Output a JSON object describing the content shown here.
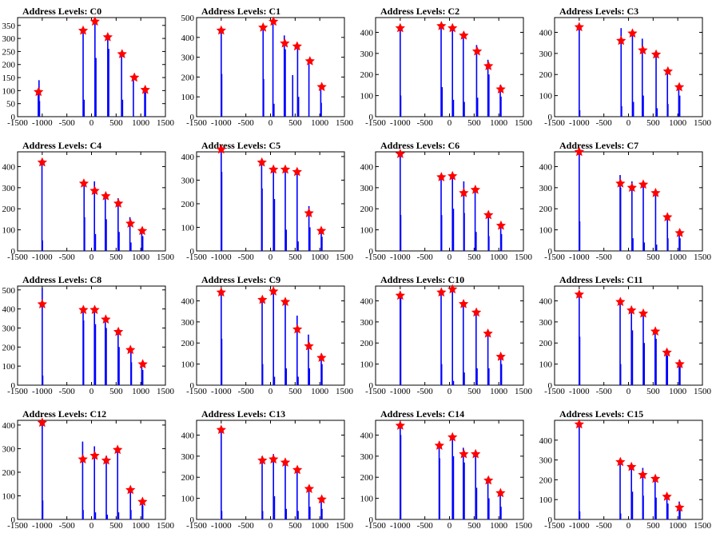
{
  "x_ticks": [
    -1500,
    -1000,
    -500,
    0,
    500,
    1000,
    1500
  ],
  "xlim": [
    -1500,
    1500
  ],
  "colors": {
    "bars": "#0000ff",
    "stars": "#ff0000",
    "axis": "#000000"
  },
  "chart_data": [
    {
      "type": "bar",
      "title": "Address Levels: C0",
      "ylim": [
        0,
        380
      ],
      "y_ticks": [
        0,
        50,
        100,
        150,
        200,
        250,
        300,
        350
      ],
      "bars": {
        "x": [
          -1080,
          -1065,
          -1055,
          -170,
          -150,
          70,
          90,
          330,
          350,
          610,
          630,
          850,
          1080,
          1095
        ],
        "y": [
          105,
          140,
          60,
          340,
          65,
          360,
          225,
          300,
          260,
          235,
          65,
          150,
          100,
          100
        ]
      },
      "stars": {
        "x": [
          -1075,
          -170,
          70,
          330,
          620,
          870,
          1090
        ],
        "y": [
          95,
          330,
          365,
          305,
          240,
          150,
          103
        ]
      }
    },
    {
      "type": "bar",
      "title": "Address Levels: C1",
      "ylim": [
        0,
        500
      ],
      "y_ticks": [
        0,
        100,
        200,
        300,
        400,
        500
      ],
      "bars": {
        "x": [
          -1000,
          -990,
          -150,
          -140,
          50,
          70,
          280,
          300,
          450,
          550,
          570,
          780,
          1020,
          1030
        ],
        "y": [
          430,
          215,
          450,
          190,
          480,
          65,
          410,
          340,
          210,
          360,
          100,
          280,
          150,
          70
        ]
      },
      "stars": {
        "x": [
          -1000,
          -150,
          60,
          290,
          540,
          800,
          1040
        ],
        "y": [
          435,
          450,
          480,
          370,
          355,
          280,
          150
        ]
      }
    },
    {
      "type": "bar",
      "title": "Address Levels: C2",
      "ylim": [
        0,
        470
      ],
      "y_ticks": [
        0,
        100,
        200,
        300,
        400
      ],
      "bars": {
        "x": [
          -1000,
          -990,
          -170,
          -150,
          60,
          80,
          280,
          300,
          550,
          570,
          780,
          800,
          1030,
          1045
        ],
        "y": [
          420,
          100,
          430,
          140,
          425,
          80,
          400,
          70,
          340,
          90,
          270,
          200,
          150,
          95
        ]
      },
      "stars": {
        "x": [
          -1000,
          -165,
          60,
          290,
          560,
          790,
          1040
        ],
        "y": [
          420,
          430,
          420,
          385,
          310,
          240,
          130
        ]
      }
    },
    {
      "type": "bar",
      "title": "Address Levels: C3",
      "ylim": [
        0,
        470
      ],
      "y_ticks": [
        0,
        100,
        200,
        300,
        400
      ],
      "bars": {
        "x": [
          -1000,
          -990,
          -150,
          -140,
          80,
          100,
          280,
          300,
          560,
          580,
          790,
          800,
          1020,
          1040
        ],
        "y": [
          420,
          30,
          420,
          50,
          400,
          70,
          370,
          100,
          300,
          40,
          220,
          60,
          150,
          100
        ]
      },
      "stars": {
        "x": [
          -1000,
          -150,
          80,
          290,
          560,
          800,
          1030
        ],
        "y": [
          425,
          360,
          395,
          315,
          295,
          215,
          140
        ]
      }
    },
    {
      "type": "bar",
      "title": "Address Levels: C4",
      "ylim": [
        0,
        470
      ],
      "y_ticks": [
        0,
        100,
        200,
        300,
        400
      ],
      "bars": {
        "x": [
          -1005,
          -995,
          -150,
          -140,
          60,
          80,
          280,
          300,
          540,
          560,
          780,
          800,
          1020,
          1040
        ],
        "y": [
          430,
          50,
          320,
          160,
          330,
          80,
          270,
          150,
          250,
          90,
          160,
          40,
          110,
          70
        ]
      },
      "stars": {
        "x": [
          -1000,
          -155,
          65,
          290,
          545,
          790,
          1030
        ],
        "y": [
          420,
          320,
          285,
          260,
          225,
          130,
          95
        ]
      }
    },
    {
      "type": "bar",
      "title": "Address Levels: C5",
      "ylim": [
        0,
        420
      ],
      "y_ticks": [
        0,
        100,
        200,
        300,
        400
      ],
      "bars": {
        "x": [
          -1000,
          -990,
          -180,
          -170,
          60,
          80,
          300,
          320,
          540,
          560,
          780,
          800,
          1030,
          1045
        ],
        "y": [
          430,
          335,
          380,
          265,
          350,
          220,
          340,
          90,
          340,
          40,
          190,
          100,
          100,
          60
        ]
      },
      "stars": {
        "x": [
          -1000,
          -175,
          60,
          300,
          540,
          780,
          1030
        ],
        "y": [
          430,
          375,
          345,
          345,
          335,
          160,
          85
        ]
      }
    },
    {
      "type": "bar",
      "title": "Address Levels: C6",
      "ylim": [
        0,
        470
      ],
      "y_ticks": [
        0,
        100,
        200,
        300,
        400
      ],
      "bars": {
        "x": [
          -1000,
          -990,
          -170,
          -160,
          60,
          80,
          290,
          300,
          520,
          540,
          790,
          800,
          1040,
          1055
        ],
        "y": [
          470,
          170,
          340,
          170,
          360,
          200,
          330,
          180,
          300,
          90,
          190,
          70,
          130,
          80
        ]
      },
      "stars": {
        "x": [
          -1000,
          -165,
          60,
          290,
          525,
          790,
          1045
        ],
        "y": [
          460,
          350,
          355,
          275,
          290,
          170,
          120
        ]
      }
    },
    {
      "type": "bar",
      "title": "Address Levels: C7",
      "ylim": [
        0,
        470
      ],
      "y_ticks": [
        0,
        100,
        200,
        300,
        400
      ],
      "bars": {
        "x": [
          -1000,
          -990,
          -170,
          -160,
          70,
          90,
          300,
          320,
          550,
          570,
          790,
          800,
          1030,
          1045
        ],
        "y": [
          470,
          140,
          360,
          300,
          330,
          60,
          320,
          40,
          280,
          30,
          170,
          60,
          100,
          60
        ]
      },
      "stars": {
        "x": [
          -1000,
          -165,
          70,
          300,
          550,
          790,
          1040
        ],
        "y": [
          470,
          320,
          300,
          315,
          275,
          160,
          85
        ]
      }
    },
    {
      "type": "bar",
      "title": "Address Levels: C8",
      "ylim": [
        0,
        520
      ],
      "y_ticks": [
        0,
        100,
        200,
        300,
        400,
        500
      ],
      "bars": {
        "x": [
          -1000,
          -990,
          -170,
          -160,
          60,
          80,
          280,
          300,
          540,
          560,
          800,
          810,
          1020,
          1040
        ],
        "y": [
          510,
          50,
          400,
          340,
          400,
          320,
          350,
          300,
          290,
          200,
          190,
          120,
          110,
          80
        ]
      },
      "stars": {
        "x": [
          -1000,
          -165,
          65,
          290,
          545,
          790,
          1040
        ],
        "y": [
          425,
          395,
          395,
          345,
          280,
          185,
          110
        ]
      }
    },
    {
      "type": "bar",
      "title": "Address Levels: C9",
      "ylim": [
        0,
        470
      ],
      "y_ticks": [
        0,
        100,
        200,
        300,
        400
      ],
      "bars": {
        "x": [
          -1000,
          -990,
          -170,
          -160,
          60,
          80,
          300,
          320,
          540,
          560,
          770,
          790,
          1030,
          1045
        ],
        "y": [
          440,
          220,
          410,
          100,
          450,
          40,
          400,
          80,
          330,
          40,
          240,
          80,
          150,
          100
        ]
      },
      "stars": {
        "x": [
          -1000,
          -165,
          60,
          300,
          545,
          780,
          1035
        ],
        "y": [
          440,
          405,
          445,
          395,
          265,
          185,
          130
        ]
      }
    },
    {
      "type": "bar",
      "title": "Address Levels: C10",
      "ylim": [
        0,
        470
      ],
      "y_ticks": [
        0,
        100,
        200,
        300,
        400
      ],
      "bars": {
        "x": [
          -1000,
          -990,
          -170,
          -160,
          60,
          80,
          280,
          300,
          540,
          560,
          780,
          800,
          1040,
          1055
        ],
        "y": [
          445,
          420,
          440,
          100,
          450,
          20,
          390,
          60,
          350,
          80,
          260,
          80,
          150,
          100
        ]
      },
      "stars": {
        "x": [
          -1000,
          -165,
          60,
          285,
          545,
          780,
          1040
        ],
        "y": [
          425,
          440,
          455,
          385,
          345,
          245,
          135
        ]
      }
    },
    {
      "type": "bar",
      "title": "Address Levels: C11",
      "ylim": [
        0,
        470
      ],
      "y_ticks": [
        0,
        100,
        200,
        300,
        400
      ],
      "bars": {
        "x": [
          -1000,
          -990,
          -170,
          -160,
          60,
          80,
          300,
          320,
          540,
          560,
          770,
          790,
          1030,
          1045
        ],
        "y": [
          440,
          230,
          400,
          100,
          370,
          260,
          340,
          200,
          270,
          220,
          170,
          140,
          120,
          100
        ]
      },
      "stars": {
        "x": [
          -1000,
          -165,
          60,
          300,
          545,
          780,
          1040
        ],
        "y": [
          430,
          395,
          355,
          340,
          255,
          155,
          100
        ]
      }
    },
    {
      "type": "bar",
      "title": "Address Levels: C12",
      "ylim": [
        0,
        420
      ],
      "y_ticks": [
        0,
        100,
        200,
        300,
        400
      ],
      "bars": {
        "x": [
          -1000,
          -990,
          -180,
          -170,
          60,
          80,
          300,
          320,
          530,
          550,
          790,
          800,
          1030,
          1040
        ],
        "y": [
          410,
          80,
          330,
          40,
          310,
          30,
          270,
          20,
          300,
          30,
          140,
          40,
          80,
          60
        ]
      },
      "stars": {
        "x": [
          -1000,
          -175,
          65,
          300,
          530,
          790,
          1035
        ],
        "y": [
          410,
          255,
          270,
          250,
          295,
          125,
          75
        ]
      }
    },
    {
      "type": "bar",
      "title": "Address Levels: C13",
      "ylim": [
        0,
        470
      ],
      "y_ticks": [
        0,
        100,
        200,
        300,
        400
      ],
      "bars": {
        "x": [
          -1000,
          -990,
          -170,
          -160,
          60,
          80,
          300,
          320,
          540,
          560,
          780,
          800,
          1030,
          1045
        ],
        "y": [
          430,
          40,
          300,
          40,
          310,
          110,
          280,
          50,
          250,
          40,
          160,
          60,
          100,
          50
        ]
      },
      "stars": {
        "x": [
          -1000,
          -165,
          60,
          300,
          545,
          785,
          1040
        ],
        "y": [
          425,
          280,
          285,
          270,
          235,
          145,
          95
        ]
      }
    },
    {
      "type": "bar",
      "title": "Address Levels: C14",
      "ylim": [
        0,
        470
      ],
      "y_ticks": [
        0,
        100,
        200,
        300,
        400
      ],
      "bars": {
        "x": [
          -1000,
          -990,
          -210,
          -200,
          60,
          80,
          280,
          300,
          530,
          550,
          780,
          800,
          1030,
          1045
        ],
        "y": [
          440,
          400,
          370,
          290,
          390,
          300,
          340,
          270,
          320,
          150,
          200,
          100,
          130,
          60
        ]
      },
      "stars": {
        "x": [
          -1000,
          -205,
          60,
          290,
          530,
          790,
          1035
        ],
        "y": [
          445,
          350,
          390,
          310,
          310,
          185,
          125
        ]
      }
    },
    {
      "type": "bar",
      "title": "Address Levels: C15",
      "ylim": [
        0,
        500
      ],
      "y_ticks": [
        0,
        100,
        200,
        300,
        400
      ],
      "bars": {
        "x": [
          -1000,
          -990,
          -170,
          -160,
          60,
          80,
          290,
          300,
          540,
          560,
          780,
          800,
          1030,
          1045
        ],
        "y": [
          480,
          40,
          290,
          30,
          280,
          140,
          260,
          120,
          210,
          110,
          130,
          80,
          90,
          60
        ]
      },
      "stars": {
        "x": [
          -1000,
          -165,
          60,
          290,
          545,
          780,
          1035
        ],
        "y": [
          480,
          290,
          265,
          225,
          205,
          115,
          60
        ]
      }
    }
  ]
}
